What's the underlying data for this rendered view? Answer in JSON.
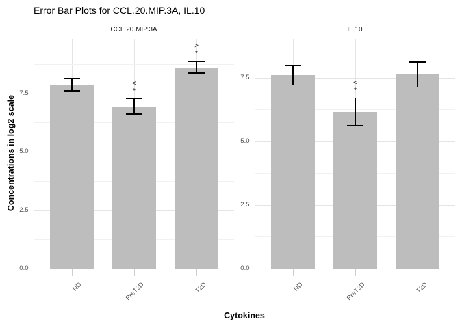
{
  "title": "Error Bar Plots for CCL.20.MIP.3A, IL.10",
  "chart_data": {
    "type": "bar",
    "categories": [
      "ND",
      "PreT2D",
      "T2D"
    ],
    "xlabel": "Cytokines",
    "ylabel": "Concentrations in log2 scale",
    "y_ticks": [
      0.0,
      2.5,
      5.0,
      7.5
    ],
    "y_tick_labels": [
      "0.0",
      "2.5",
      "5.0",
      "7.5"
    ],
    "y_minor_ticks": [
      1.25,
      3.75,
      6.25,
      8.75
    ],
    "grid": "major and minor gridlines, white background, no panel border",
    "legend": "none",
    "panels": [
      {
        "title": "CCL.20.MIP.3A",
        "ylim": [
          0,
          9.83
        ],
        "values": [
          7.87,
          6.94,
          8.61
        ],
        "errors": [
          0.27,
          0.33,
          0.24
        ],
        "annotations": [
          [],
          [
            "<",
            "*"
          ],
          [
            ">",
            "*"
          ]
        ]
      },
      {
        "title": "IL.10",
        "ylim": [
          0,
          9.03
        ],
        "values": [
          7.61,
          6.16,
          7.62
        ],
        "errors": [
          0.39,
          0.54,
          0.49
        ],
        "annotations": [
          [],
          [
            "<",
            "*"
          ],
          []
        ]
      }
    ],
    "bar_color": "#bdbdbd",
    "error_bar_color": "#000000",
    "gridline_major_color": "#e4e4e4",
    "gridline_minor_color": "#f1f1f1",
    "axis_text_color": "#4d4d4d"
  }
}
